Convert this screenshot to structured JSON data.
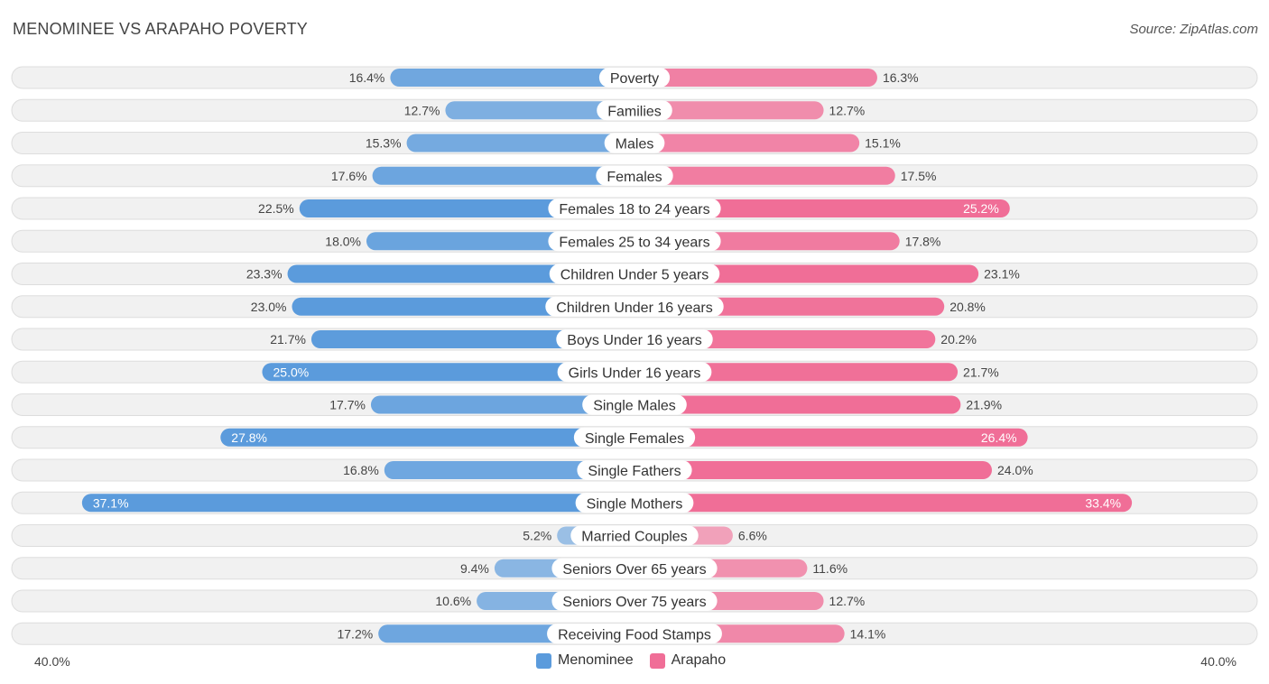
{
  "header": {
    "title": "MENOMINEE VS ARAPAHO POVERTY",
    "source": "Source: ZipAtlas.com"
  },
  "colors": {
    "menominee": "#5b9bdc",
    "arapaho": "#f06e97"
  },
  "chart_data": {
    "type": "bar",
    "orientation": "diverging-horizontal",
    "title": "MENOMINEE VS ARAPAHO POVERTY",
    "xlim": [
      -40,
      40
    ],
    "axis_min_label": "40.0%",
    "axis_max_label": "40.0%",
    "categories": [
      "Poverty",
      "Families",
      "Males",
      "Females",
      "Females 18 to 24 years",
      "Females 25 to 34 years",
      "Children Under 5 years",
      "Children Under 16 years",
      "Boys Under 16 years",
      "Girls Under 16 years",
      "Single Males",
      "Single Females",
      "Single Fathers",
      "Single Mothers",
      "Married Couples",
      "Seniors Over 65 years",
      "Seniors Over 75 years",
      "Receiving Food Stamps"
    ],
    "series": [
      {
        "name": "Menominee",
        "side": "left",
        "values": [
          16.4,
          12.7,
          15.3,
          17.6,
          22.5,
          18.0,
          23.3,
          23.0,
          21.7,
          25.0,
          17.7,
          27.8,
          16.8,
          37.1,
          5.2,
          9.4,
          10.6,
          17.2
        ],
        "labels": [
          "16.4%",
          "12.7%",
          "15.3%",
          "17.6%",
          "22.5%",
          "18.0%",
          "23.3%",
          "23.0%",
          "21.7%",
          "25.0%",
          "17.7%",
          "27.8%",
          "16.8%",
          "37.1%",
          "5.2%",
          "9.4%",
          "10.6%",
          "17.2%"
        ]
      },
      {
        "name": "Arapaho",
        "side": "right",
        "values": [
          16.3,
          12.7,
          15.1,
          17.5,
          25.2,
          17.8,
          23.1,
          20.8,
          20.2,
          21.7,
          21.9,
          26.4,
          24.0,
          33.4,
          6.6,
          11.6,
          12.7,
          14.1
        ],
        "labels": [
          "16.3%",
          "12.7%",
          "15.1%",
          "17.5%",
          "25.2%",
          "17.8%",
          "23.1%",
          "20.8%",
          "20.2%",
          "21.7%",
          "21.9%",
          "26.4%",
          "24.0%",
          "33.4%",
          "6.6%",
          "11.6%",
          "12.7%",
          "14.1%"
        ]
      }
    ],
    "legend": {
      "position": "bottom-center",
      "entries": [
        "Menominee",
        "Arapaho"
      ]
    }
  }
}
